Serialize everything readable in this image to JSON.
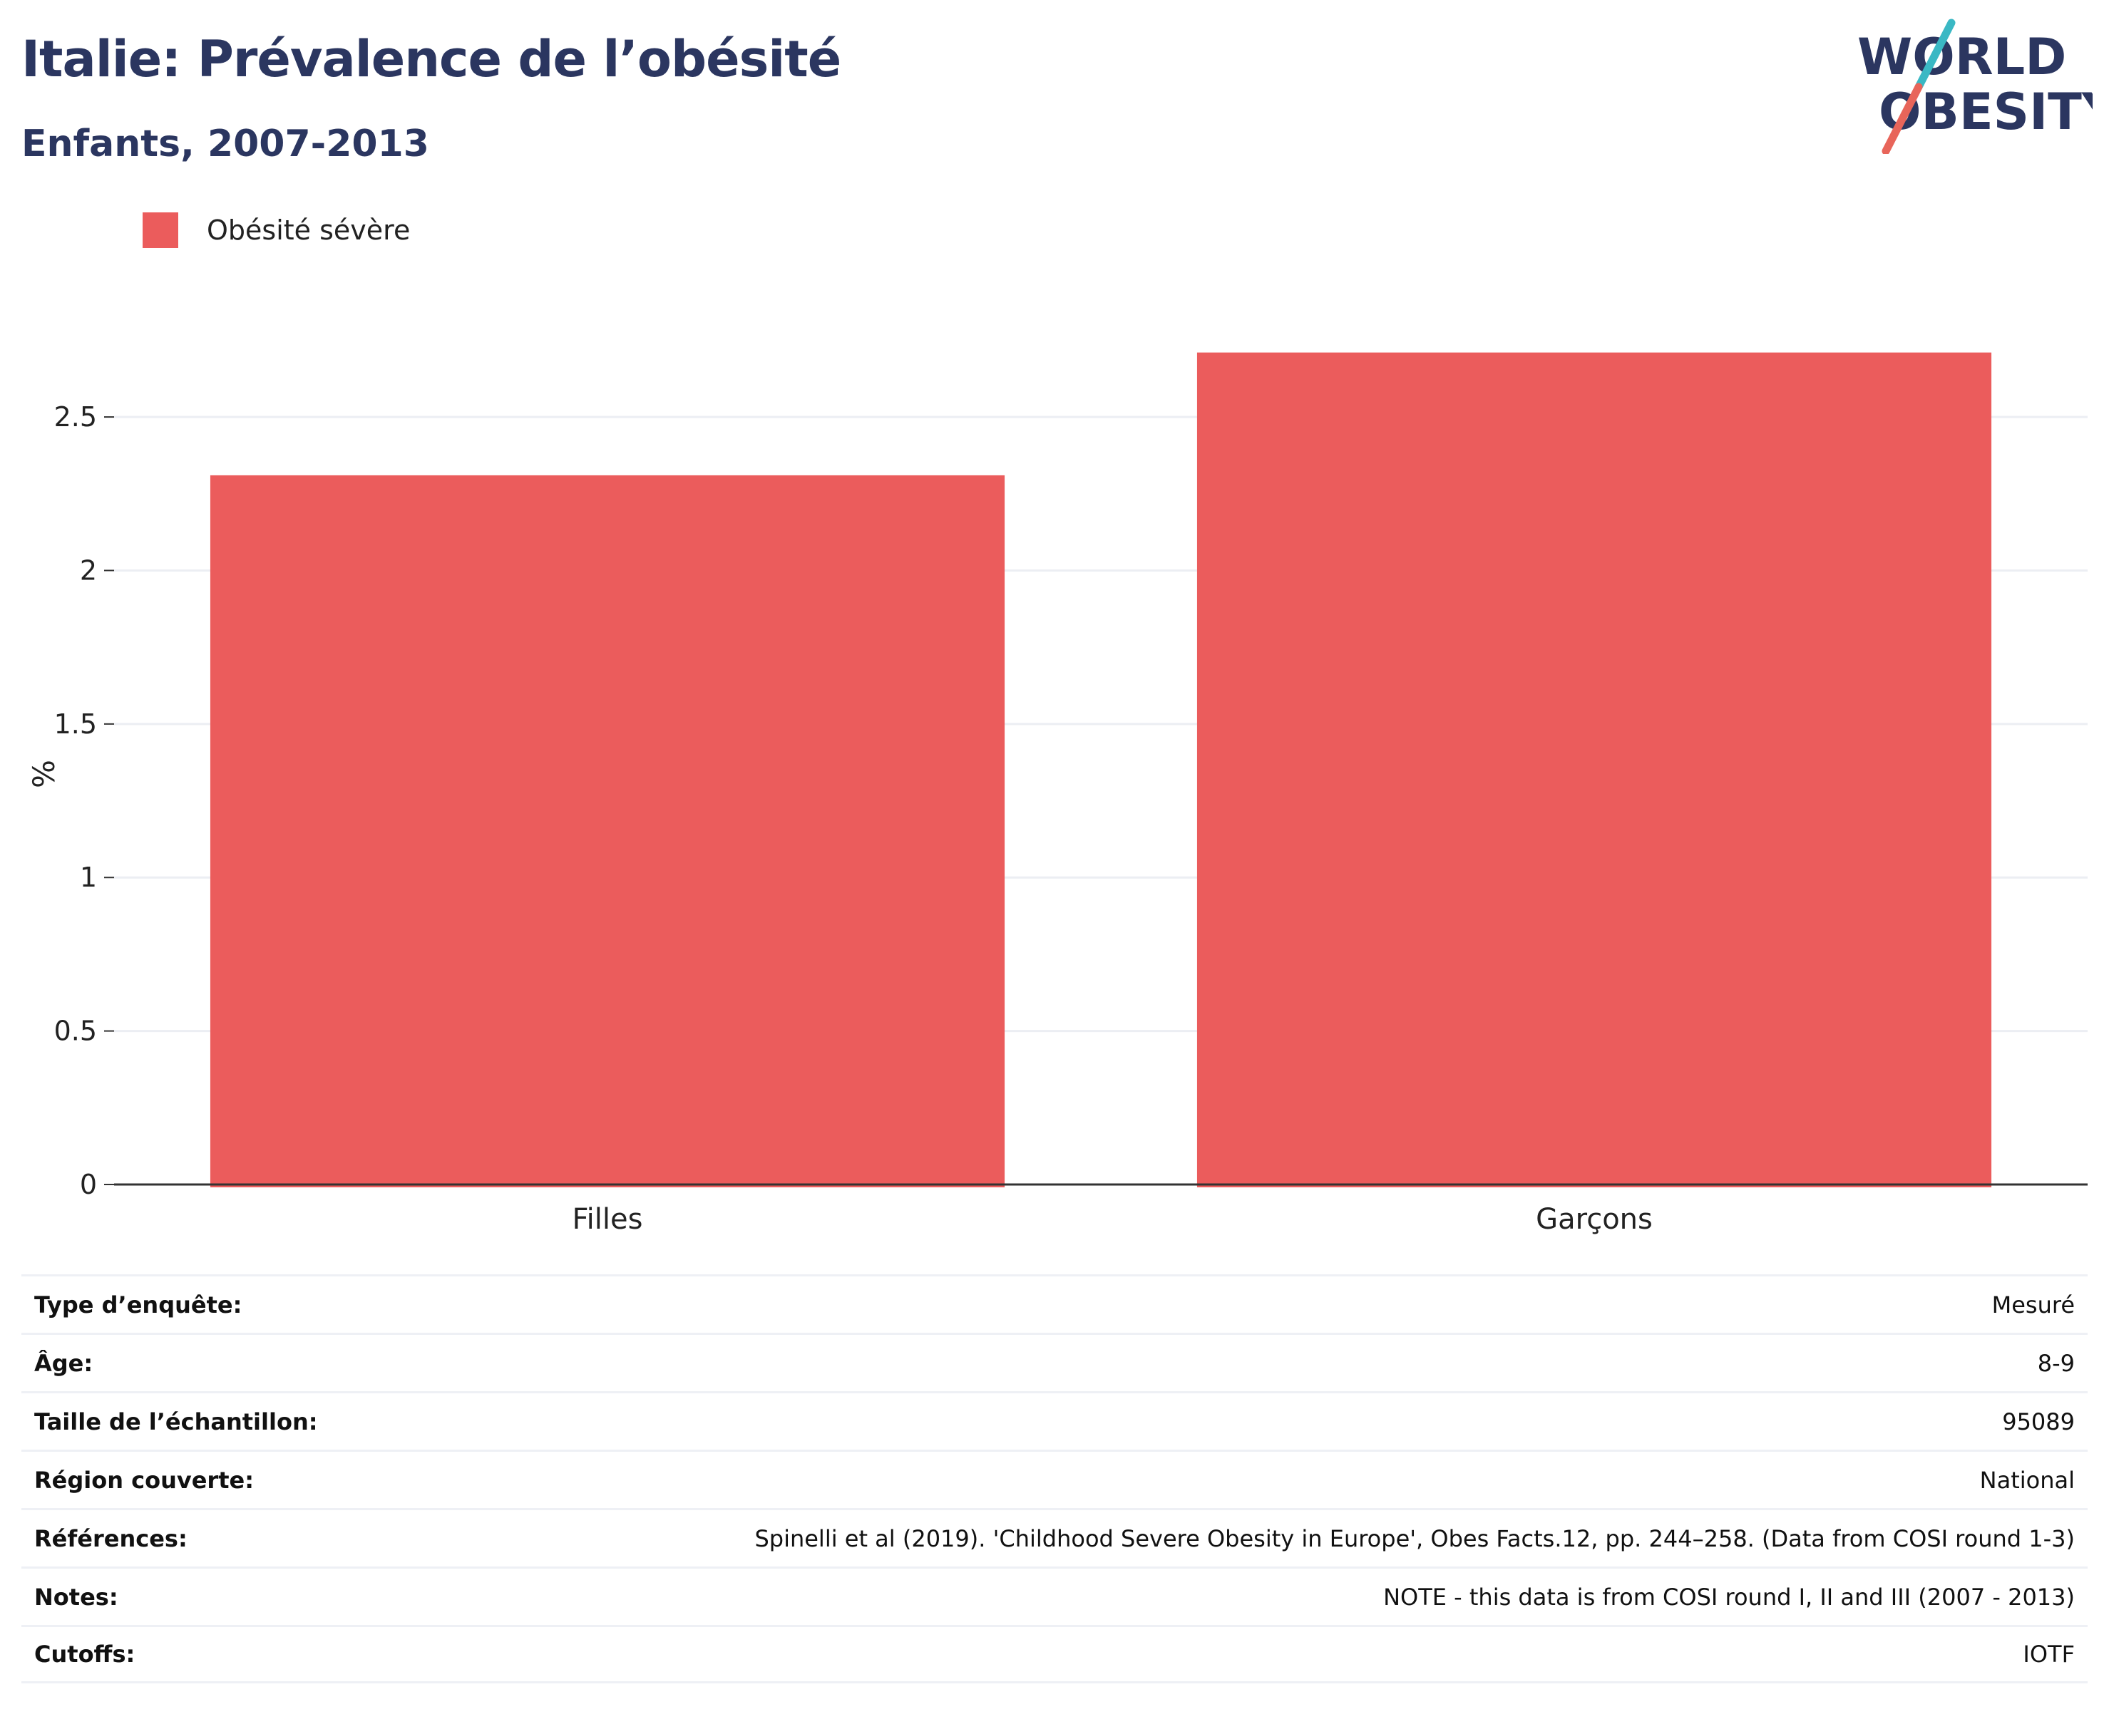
{
  "header": {
    "title": "Italie: Prévalence de l’obésité",
    "subtitle": "Enfants, 2007-2013"
  },
  "logo": {
    "line1": "WORLD",
    "line2": "OBESITY",
    "colors": {
      "text": "#2b3660",
      "slash_top": "#3ab8c4",
      "slash_bottom": "#e8655a"
    }
  },
  "colors": {
    "bar": "#eb5c5c",
    "grid": "#eceef3",
    "axis": "#333333",
    "title": "#2b3660"
  },
  "chart_data": {
    "type": "bar",
    "categories": [
      "Filles",
      "Garçons"
    ],
    "series": [
      {
        "name": "Obésité sévère",
        "values": [
          2.31,
          2.71
        ]
      }
    ],
    "ylabel": "%",
    "xlabel": "",
    "ylim": [
      0,
      2.86
    ],
    "yticks": [
      {
        "value": 0,
        "label": "0"
      },
      {
        "value": 0.5,
        "label": "0.5"
      },
      {
        "value": 1,
        "label": "1"
      },
      {
        "value": 1.5,
        "label": "1.5"
      },
      {
        "value": 2,
        "label": "2"
      },
      {
        "value": 2.5,
        "label": "2.5"
      }
    ],
    "grid": true,
    "legend": "top-left"
  },
  "info_table": [
    {
      "label": "Type d’enquête:",
      "value": "Mesuré"
    },
    {
      "label": "Âge:",
      "value": "8-9"
    },
    {
      "label": "Taille de l’échantillon:",
      "value": "95089"
    },
    {
      "label": "Région couverte:",
      "value": "National"
    },
    {
      "label": "Références:",
      "value": "Spinelli et al (2019). 'Childhood Severe Obesity in Europe', Obes Facts.12, pp. 244–258. (Data from COSI round 1-3)"
    },
    {
      "label": "Notes:",
      "value": "NOTE - this data is from COSI round I, II and III (2007 - 2013)"
    },
    {
      "label": "Cutoffs:",
      "value": "IOTF"
    }
  ]
}
